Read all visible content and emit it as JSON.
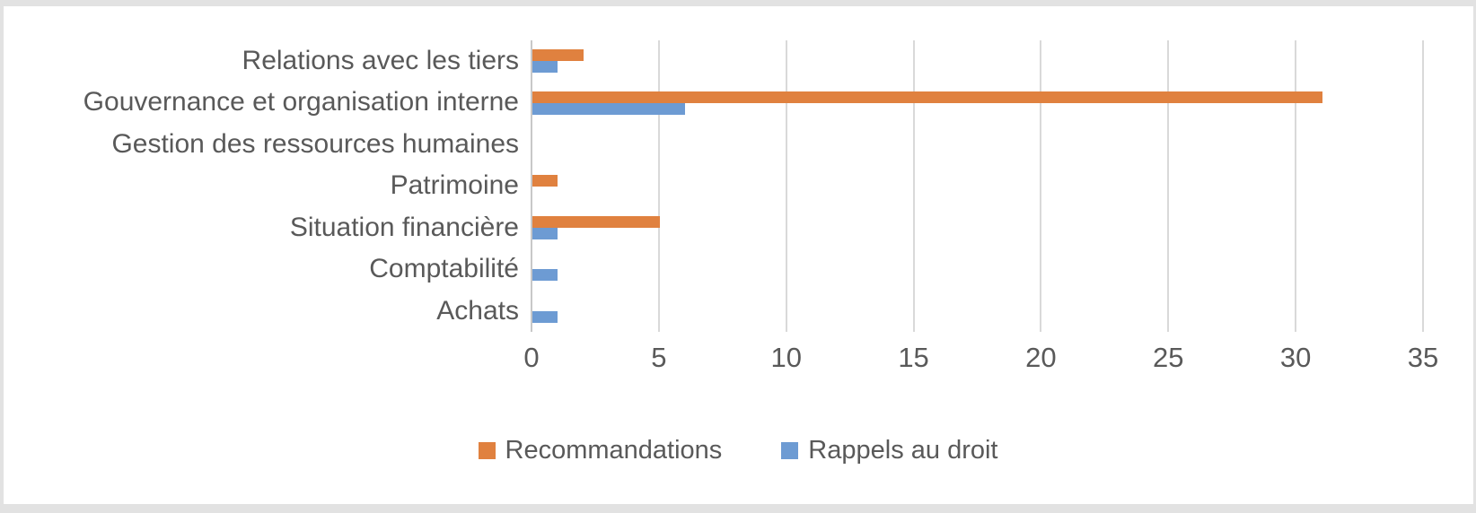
{
  "chart_data": {
    "type": "bar",
    "orientation": "horizontal",
    "title": "",
    "xlabel": "",
    "ylabel": "",
    "categories": [
      "Relations avec les tiers",
      "Gouvernance et organisation interne",
      "Gestion des ressources humaines",
      "Patrimoine",
      "Situation financière",
      "Comptabilité",
      "Achats"
    ],
    "series": [
      {
        "name": "Recommandations",
        "color": "#e0813f",
        "values": [
          2,
          31,
          0,
          1,
          5,
          0,
          0
        ]
      },
      {
        "name": "Rappels au droit",
        "color": "#6d9bd3",
        "values": [
          1,
          6,
          0,
          0,
          1,
          1,
          1
        ]
      }
    ],
    "xlim": [
      0,
      35
    ],
    "x_ticks": [
      "0",
      "5",
      "10",
      "15",
      "20",
      "25",
      "30",
      "35"
    ],
    "grid": "vertical",
    "legend_position": "bottom"
  },
  "colors": {
    "gridline": "#d9d9d9",
    "axis_line": "#c8c8c8",
    "text": "#595959",
    "page_edge": "#e2e2e2",
    "chart_background": "#ffffff"
  }
}
